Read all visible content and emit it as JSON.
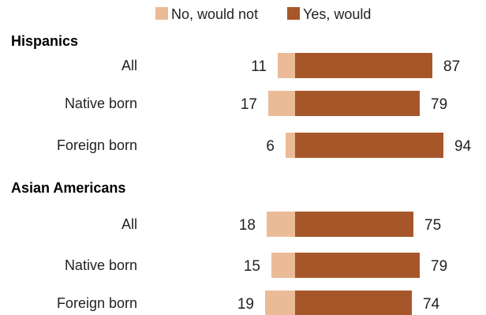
{
  "chart_data": {
    "type": "bar",
    "orientation": "horizontal-diverging",
    "legend": {
      "placement": "top-center",
      "items": [
        {
          "label": "No, would not",
          "color": "#EBBB98"
        },
        {
          "label": "Yes, would",
          "color": "#A6572A"
        }
      ]
    },
    "series": [
      {
        "name": "No, would not",
        "color": "#EBBB98"
      },
      {
        "name": "Yes, would",
        "color": "#A6572A"
      }
    ],
    "groups": [
      {
        "title": "Hispanics",
        "rows": [
          {
            "category": "All",
            "no": 11,
            "yes": 87
          },
          {
            "category": "Native born",
            "no": 17,
            "yes": 79
          },
          {
            "category": "Foreign born",
            "no": 6,
            "yes": 94
          }
        ]
      },
      {
        "title": "Asian Americans",
        "rows": [
          {
            "category": "All",
            "no": 18,
            "yes": 75
          },
          {
            "category": "Native born",
            "no": 15,
            "yes": 79
          },
          {
            "category": "Foreign born",
            "no": 19,
            "yes": 74
          }
        ]
      }
    ],
    "grid": false
  }
}
